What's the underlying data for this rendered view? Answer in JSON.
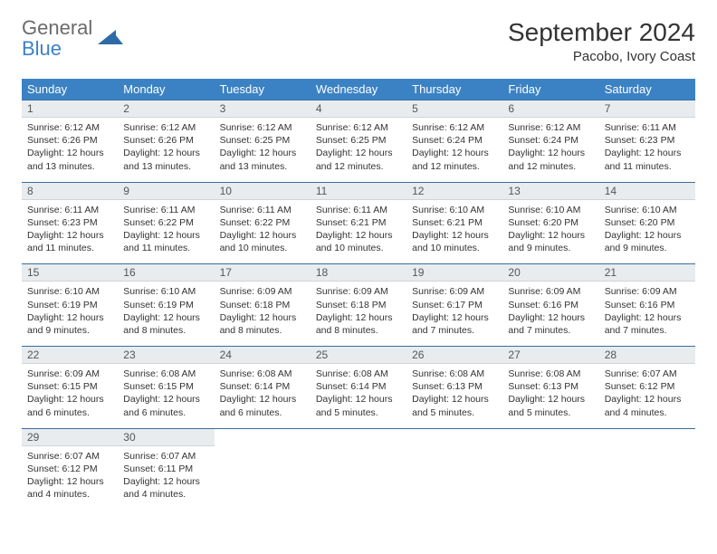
{
  "brand": {
    "name1": "General",
    "name2": "Blue",
    "icon_color": "#2e6aa8"
  },
  "title": "September 2024",
  "location": "Pacobo, Ivory Coast",
  "header_bg": "#3b82c4",
  "weekdays": [
    "Sunday",
    "Monday",
    "Tuesday",
    "Wednesday",
    "Thursday",
    "Friday",
    "Saturday"
  ],
  "fonts": {
    "title_size": 28,
    "header_size": 13,
    "body_size": 10.5
  },
  "colors": {
    "daynum_bg": "#e8ecef",
    "row_border": "#3b6ea0",
    "text": "#333333"
  },
  "weeks": [
    [
      {
        "n": "1",
        "sunrise": "6:12 AM",
        "sunset": "6:26 PM",
        "dl": "12 hours and 13 minutes."
      },
      {
        "n": "2",
        "sunrise": "6:12 AM",
        "sunset": "6:26 PM",
        "dl": "12 hours and 13 minutes."
      },
      {
        "n": "3",
        "sunrise": "6:12 AM",
        "sunset": "6:25 PM",
        "dl": "12 hours and 13 minutes."
      },
      {
        "n": "4",
        "sunrise": "6:12 AM",
        "sunset": "6:25 PM",
        "dl": "12 hours and 12 minutes."
      },
      {
        "n": "5",
        "sunrise": "6:12 AM",
        "sunset": "6:24 PM",
        "dl": "12 hours and 12 minutes."
      },
      {
        "n": "6",
        "sunrise": "6:12 AM",
        "sunset": "6:24 PM",
        "dl": "12 hours and 12 minutes."
      },
      {
        "n": "7",
        "sunrise": "6:11 AM",
        "sunset": "6:23 PM",
        "dl": "12 hours and 11 minutes."
      }
    ],
    [
      {
        "n": "8",
        "sunrise": "6:11 AM",
        "sunset": "6:23 PM",
        "dl": "12 hours and 11 minutes."
      },
      {
        "n": "9",
        "sunrise": "6:11 AM",
        "sunset": "6:22 PM",
        "dl": "12 hours and 11 minutes."
      },
      {
        "n": "10",
        "sunrise": "6:11 AM",
        "sunset": "6:22 PM",
        "dl": "12 hours and 10 minutes."
      },
      {
        "n": "11",
        "sunrise": "6:11 AM",
        "sunset": "6:21 PM",
        "dl": "12 hours and 10 minutes."
      },
      {
        "n": "12",
        "sunrise": "6:10 AM",
        "sunset": "6:21 PM",
        "dl": "12 hours and 10 minutes."
      },
      {
        "n": "13",
        "sunrise": "6:10 AM",
        "sunset": "6:20 PM",
        "dl": "12 hours and 9 minutes."
      },
      {
        "n": "14",
        "sunrise": "6:10 AM",
        "sunset": "6:20 PM",
        "dl": "12 hours and 9 minutes."
      }
    ],
    [
      {
        "n": "15",
        "sunrise": "6:10 AM",
        "sunset": "6:19 PM",
        "dl": "12 hours and 9 minutes."
      },
      {
        "n": "16",
        "sunrise": "6:10 AM",
        "sunset": "6:19 PM",
        "dl": "12 hours and 8 minutes."
      },
      {
        "n": "17",
        "sunrise": "6:09 AM",
        "sunset": "6:18 PM",
        "dl": "12 hours and 8 minutes."
      },
      {
        "n": "18",
        "sunrise": "6:09 AM",
        "sunset": "6:18 PM",
        "dl": "12 hours and 8 minutes."
      },
      {
        "n": "19",
        "sunrise": "6:09 AM",
        "sunset": "6:17 PM",
        "dl": "12 hours and 7 minutes."
      },
      {
        "n": "20",
        "sunrise": "6:09 AM",
        "sunset": "6:16 PM",
        "dl": "12 hours and 7 minutes."
      },
      {
        "n": "21",
        "sunrise": "6:09 AM",
        "sunset": "6:16 PM",
        "dl": "12 hours and 7 minutes."
      }
    ],
    [
      {
        "n": "22",
        "sunrise": "6:09 AM",
        "sunset": "6:15 PM",
        "dl": "12 hours and 6 minutes."
      },
      {
        "n": "23",
        "sunrise": "6:08 AM",
        "sunset": "6:15 PM",
        "dl": "12 hours and 6 minutes."
      },
      {
        "n": "24",
        "sunrise": "6:08 AM",
        "sunset": "6:14 PM",
        "dl": "12 hours and 6 minutes."
      },
      {
        "n": "25",
        "sunrise": "6:08 AM",
        "sunset": "6:14 PM",
        "dl": "12 hours and 5 minutes."
      },
      {
        "n": "26",
        "sunrise": "6:08 AM",
        "sunset": "6:13 PM",
        "dl": "12 hours and 5 minutes."
      },
      {
        "n": "27",
        "sunrise": "6:08 AM",
        "sunset": "6:13 PM",
        "dl": "12 hours and 5 minutes."
      },
      {
        "n": "28",
        "sunrise": "6:07 AM",
        "sunset": "6:12 PM",
        "dl": "12 hours and 4 minutes."
      }
    ],
    [
      {
        "n": "29",
        "sunrise": "6:07 AM",
        "sunset": "6:12 PM",
        "dl": "12 hours and 4 minutes."
      },
      {
        "n": "30",
        "sunrise": "6:07 AM",
        "sunset": "6:11 PM",
        "dl": "12 hours and 4 minutes."
      },
      null,
      null,
      null,
      null,
      null
    ]
  ],
  "labels": {
    "sunrise": "Sunrise:",
    "sunset": "Sunset:",
    "daylight": "Daylight:"
  }
}
